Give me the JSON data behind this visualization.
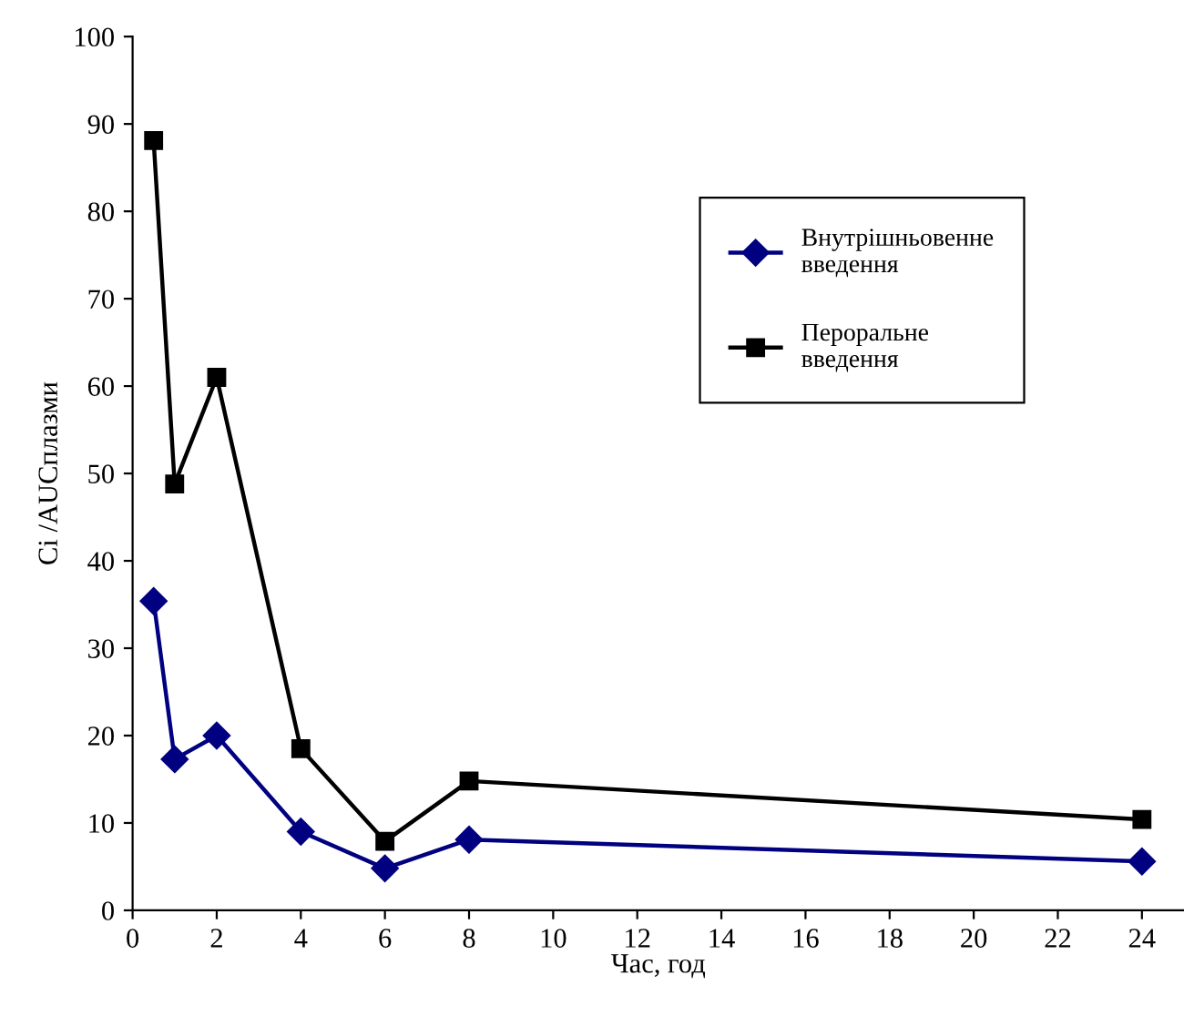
{
  "chart_data": {
    "type": "line",
    "xlabel": "Час, год",
    "ylabel": "Ci /AUCплазми",
    "x": [
      0.5,
      1,
      2,
      4,
      6,
      8,
      24
    ],
    "series": [
      {
        "name": "Внутрішньовенне введення",
        "color": "#000080",
        "marker": "diamond",
        "values": [
          35.4,
          17.3,
          20,
          9,
          4.8,
          8.1,
          5.6
        ]
      },
      {
        "name": "Пероральне введення",
        "color": "#000000",
        "marker": "square",
        "values": [
          88.1,
          48.8,
          61,
          18.5,
          7.9,
          14.8,
          10.4
        ]
      }
    ],
    "xlim": [
      0,
      25
    ],
    "ylim": [
      0,
      100
    ],
    "xticks": [
      0,
      2,
      4,
      6,
      8,
      10,
      12,
      14,
      16,
      18,
      20,
      22,
      24
    ],
    "yticks": [
      0,
      10,
      20,
      30,
      40,
      50,
      60,
      70,
      80,
      90,
      100
    ],
    "grid": false,
    "legend": "upper right",
    "line_style": "solid"
  }
}
